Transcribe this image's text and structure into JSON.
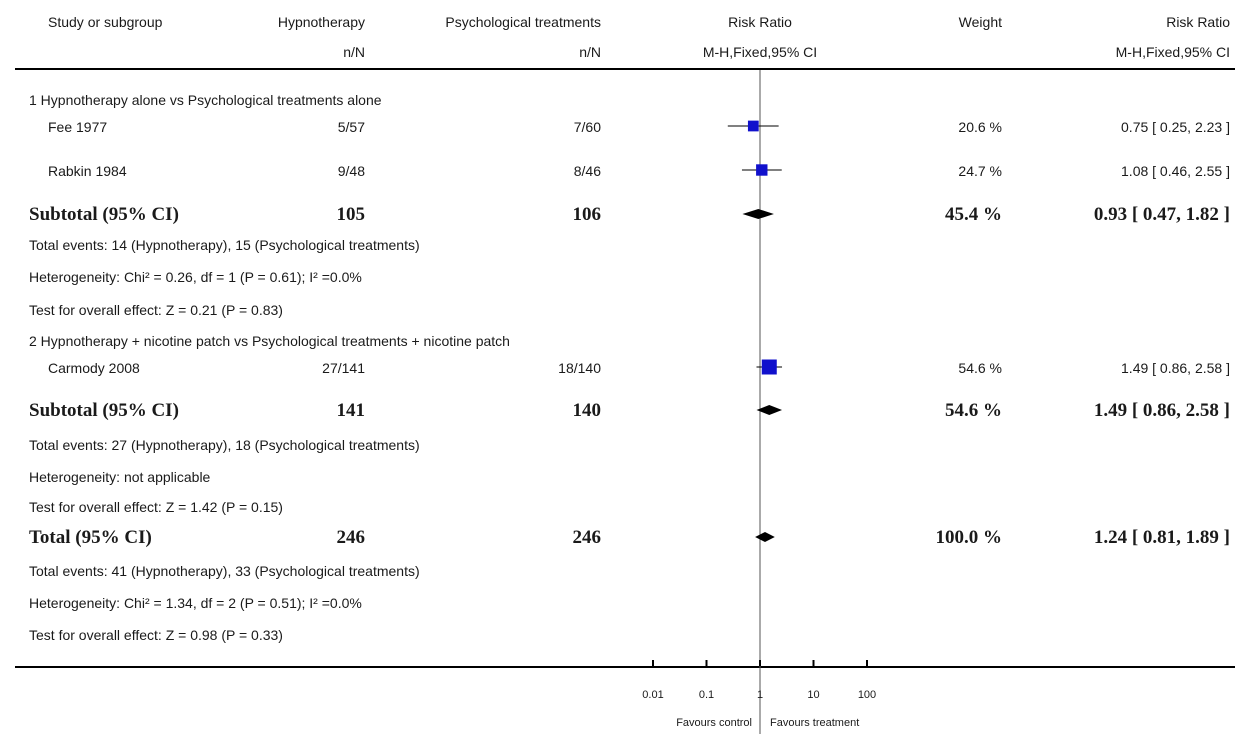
{
  "header": {
    "study_col": "Study or subgroup",
    "group1": "Hypnotherapy",
    "group2": "Psychological treatments",
    "nN": "n/N",
    "rr_col": "Risk Ratio",
    "weight_col": "Weight",
    "rr_sub": "M-H,Fixed,95% CI"
  },
  "subgroup1": {
    "title": "1 Hypnotherapy alone vs Psychological treatments alone",
    "subtotal_label": "Subtotal (95% CI)",
    "subtotal_n1": "105",
    "subtotal_n2": "106",
    "subtotal_weight": "45.4 %",
    "subtotal_rr": "0.93 [ 0.47, 1.82 ]",
    "total_events": "Total events: 14 (Hypnotherapy), 15 (Psychological treatments)",
    "heterogeneity": "Heterogeneity: Chi² = 0.26, df = 1 (P = 0.61); I² =0.0%",
    "overall_effect": "Test for overall effect: Z = 0.21  (P = 0.83)"
  },
  "subgroup2": {
    "title": "2 Hypnotherapy + nicotine patch vs Psychological treatments + nicotine patch",
    "subtotal_label": "Subtotal (95% CI)",
    "subtotal_n1": "141",
    "subtotal_n2": "140",
    "subtotal_weight": "54.6 %",
    "subtotal_rr": "1.49 [ 0.86, 2.58 ]",
    "total_events": "Total events: 27 (Hypnotherapy), 18 (Psychological treatments)",
    "heterogeneity": "Heterogeneity: not applicable",
    "overall_effect": "Test for overall effect: Z = 1.42 (P = 0.15)"
  },
  "total": {
    "label": "Total (95% CI)",
    "n1": "246",
    "n2": "246",
    "weight": "100.0 %",
    "rr": "1.24 [ 0.81, 1.89 ]",
    "total_events": "Total events: 41 (Hypnotherapy), 33 (Psychological treatments)",
    "heterogeneity": "Heterogeneity: Chi² = 1.34, df = 2 (P = 0.51); I² =0.0%",
    "overall_effect": "Test for overall effect: Z = 0.98  (P = 0.33)"
  },
  "footer": {
    "favours_left": "Favours control",
    "favours_right": "Favours treatment"
  },
  "chart_data": {
    "type": "forest",
    "scale": "log",
    "xlim": [
      0.01,
      100
    ],
    "ticks": [
      {
        "value": 0.01,
        "label": "0.01"
      },
      {
        "value": 0.1,
        "label": "0.1"
      },
      {
        "value": 1,
        "label": "1"
      },
      {
        "value": 10,
        "label": "10"
      },
      {
        "value": 100,
        "label": "100"
      }
    ],
    "studies": [
      {
        "name": "Fee 1977",
        "events1": "5/57",
        "events2": "7/60",
        "rr": 0.75,
        "lo": 0.25,
        "hi": 2.23,
        "weight": 20.6,
        "weight_label": "20.6 %",
        "ci_label": "0.75 [ 0.25, 2.23 ]"
      },
      {
        "name": "Rabkin 1984",
        "events1": "9/48",
        "events2": "8/46",
        "rr": 1.08,
        "lo": 0.46,
        "hi": 2.55,
        "weight": 24.7,
        "weight_label": "24.7 %",
        "ci_label": "1.08 [ 0.46, 2.55 ]"
      },
      {
        "name": "Carmody 2008",
        "events1": "27/141",
        "events2": "18/140",
        "rr": 1.49,
        "lo": 0.86,
        "hi": 2.58,
        "weight": 54.6,
        "weight_label": "54.6 %",
        "ci_label": "1.49 [ 0.86, 2.58 ]"
      }
    ],
    "pooled": [
      {
        "name": "Subtotal 1",
        "rr": 0.93,
        "lo": 0.47,
        "hi": 1.82
      },
      {
        "name": "Subtotal 2",
        "rr": 1.49,
        "lo": 0.86,
        "hi": 2.58
      },
      {
        "name": "Total",
        "rr": 1.24,
        "lo": 0.81,
        "hi": 1.89
      }
    ],
    "colors": {
      "box": "#1010cc",
      "line": "#000000",
      "diamond": "#000000"
    }
  }
}
